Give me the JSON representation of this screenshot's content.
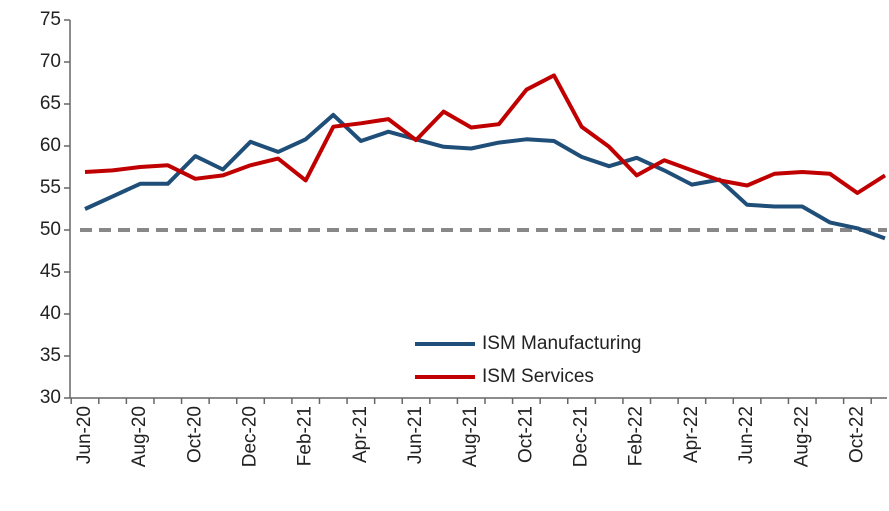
{
  "chart_data": {
    "type": "line",
    "categories": [
      "Jun-20",
      null,
      "Aug-20",
      null,
      "Oct-20",
      null,
      "Dec-20",
      null,
      "Feb-21",
      null,
      "Apr-21",
      null,
      "Jun-21",
      null,
      "Aug-21",
      null,
      "Oct-21",
      null,
      "Dec-21",
      null,
      "Feb-22",
      null,
      "Apr-22",
      null,
      "Jun-22",
      null,
      "Aug-22",
      null,
      "Oct-22",
      null
    ],
    "series": [
      {
        "name": "ISM Manufacturing",
        "color": "#1f4e79",
        "values": [
          52.5,
          54,
          55.5,
          55.5,
          58.8,
          57.2,
          60.5,
          59.3,
          60.8,
          63.7,
          60.6,
          61.7,
          60.8,
          59.9,
          59.7,
          60.4,
          60.8,
          60.6,
          58.7,
          57.6,
          58.6,
          57.1,
          55.4,
          56.0,
          53.0,
          52.8,
          52.8,
          50.9,
          50.2,
          49.0
        ]
      },
      {
        "name": "ISM Services",
        "color": "#c00000",
        "values": [
          56.9,
          57.1,
          57.5,
          57.7,
          56.1,
          56.5,
          57.7,
          58.5,
          55.9,
          62.3,
          62.7,
          63.2,
          60.7,
          64.1,
          62.2,
          62.6,
          66.7,
          68.4,
          62.3,
          59.9,
          56.5,
          58.3,
          57.1,
          55.9,
          55.3,
          56.7,
          56.9,
          56.7,
          54.4,
          56.5
        ]
      }
    ],
    "reference_line": 50,
    "reference_color": "#888888",
    "ylim": [
      30,
      75
    ],
    "yticks": [
      30,
      35,
      40,
      45,
      50,
      55,
      60,
      65,
      70,
      75
    ],
    "grid": false,
    "legend": "bottom"
  }
}
